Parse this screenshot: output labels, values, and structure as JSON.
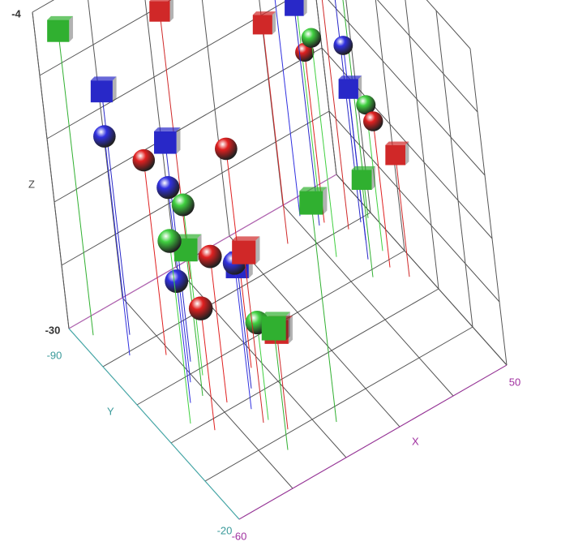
{
  "chart_data": {
    "type": "scatter3d",
    "x_label": "X",
    "y_label": "Y",
    "z_label": "Z",
    "xlim": [
      -60,
      50
    ],
    "ylim": [
      -90,
      -20
    ],
    "zlim": [
      -30,
      -4
    ],
    "xticks": [
      -60,
      50
    ],
    "yticks": [
      -90,
      -20
    ],
    "zticks": [
      -30,
      -4
    ],
    "grid": true,
    "drop_lines": true,
    "series": [
      {
        "color": "#e02020",
        "marker": "sphere",
        "x": [
          -40,
          -20,
          -35,
          -45,
          35,
          42
        ],
        "y": [
          -70,
          -55,
          -50,
          -45,
          -80,
          -60
        ],
        "z": [
          -14,
          -12,
          -18,
          -20,
          -16,
          -18
        ]
      },
      {
        "color": "#d02828",
        "marker": "cube",
        "x": [
          -15,
          -30,
          40,
          45,
          -25,
          20
        ],
        "y": [
          -85,
          -40,
          -75,
          -55,
          -35,
          -80
        ],
        "z": [
          -8,
          -16,
          -10,
          -20,
          -22,
          -12
        ]
      },
      {
        "color": "#40d040",
        "marker": "sphere",
        "x": [
          -35,
          -50,
          38,
          30,
          -28,
          44
        ],
        "y": [
          -60,
          -50,
          -85,
          -70,
          -40,
          -65
        ],
        "z": [
          -16,
          -15,
          -8,
          -12,
          -22,
          -18
        ]
      },
      {
        "color": "#30b030",
        "marker": "cube",
        "x": [
          -55,
          -10,
          -40,
          35,
          48,
          -30
        ],
        "y": [
          -85,
          -30,
          -55,
          -60,
          -75,
          -30
        ],
        "z": [
          -5,
          -12,
          -18,
          -22,
          -10,
          -20
        ]
      },
      {
        "color": "#3030e0",
        "marker": "sphere",
        "x": [
          -50,
          -40,
          -30,
          30,
          42,
          -45
        ],
        "y": [
          -75,
          -60,
          -45,
          -85,
          -70,
          -55
        ],
        "z": [
          -12,
          -14,
          -18,
          -6,
          -14,
          -20
        ]
      },
      {
        "color": "#2828c8",
        "marker": "cube",
        "x": [
          -45,
          -35,
          45,
          38,
          -25,
          33
        ],
        "y": [
          -80,
          -65,
          -75,
          -65,
          -50,
          -80
        ],
        "z": [
          -10,
          -12,
          -10,
          -16,
          -20,
          -12
        ]
      }
    ]
  }
}
